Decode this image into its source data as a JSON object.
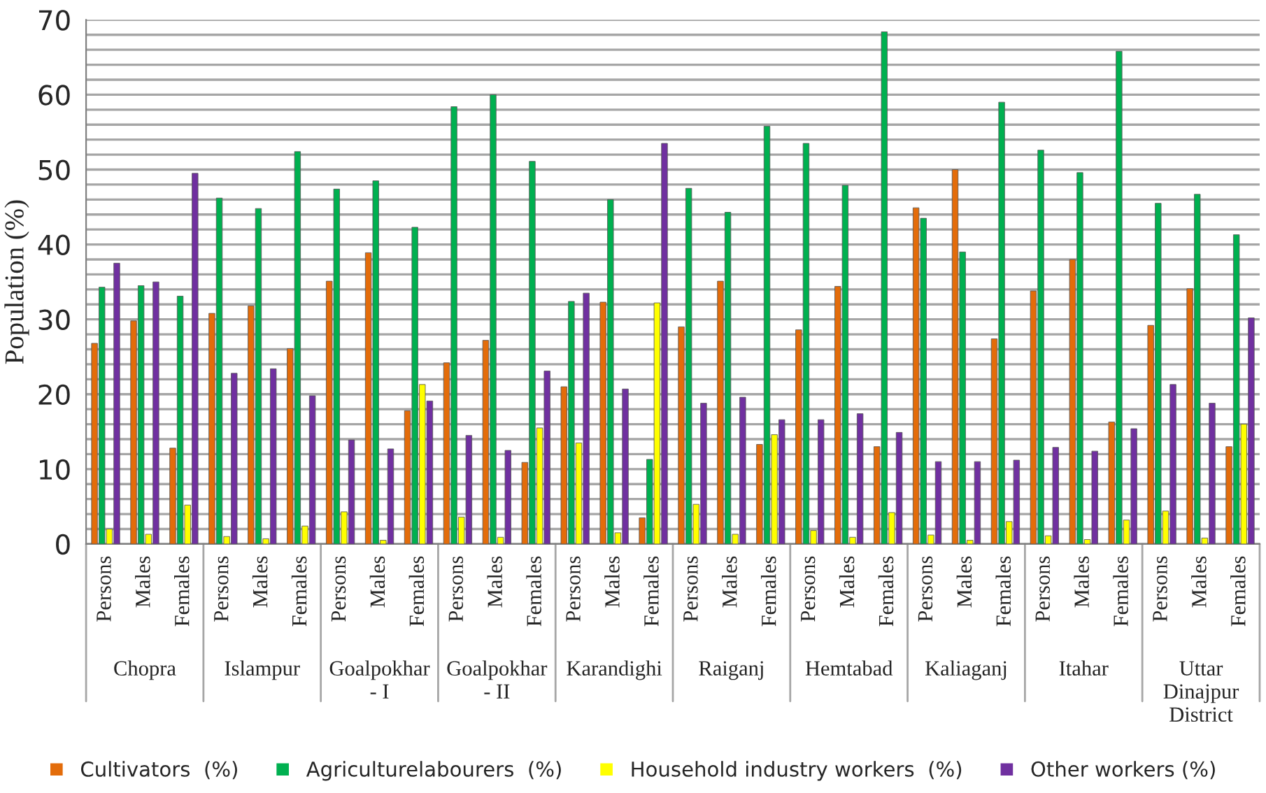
{
  "chart_data": {
    "type": "bar",
    "ylabel": "Population (%)",
    "categories": [
      "Persons",
      "Males",
      "Females",
      "Persons",
      "Males",
      "Females",
      "Persons",
      "Males",
      "Females",
      "Persons",
      "Males",
      "Females",
      "Persons",
      "Males",
      "Females",
      "Persons",
      "Males",
      "Females",
      "Persons",
      "Males",
      "Females",
      "Persons",
      "Males",
      "Females",
      "Persons",
      "Males",
      "Females",
      "Persons",
      "Males",
      "Females"
    ],
    "annotations": [
      "Chopra",
      "Islampur",
      "Goalpokhar\n- I",
      "Goalpokhar\n- II",
      "Karandighi",
      "Raiganj",
      "Hemtabad",
      "Kaliaganj",
      "Itahar",
      "Uttar\nDinajpur\nDistrict"
    ],
    "series": [
      {
        "name": "Cultivators  (%)",
        "color": "#e36c0a",
        "values": [
          26.8,
          29.8,
          12.8,
          30.8,
          31.8,
          26.1,
          35.1,
          38.9,
          17.8,
          24.2,
          27.2,
          10.9,
          21,
          32.3,
          3.5,
          29,
          35.1,
          13.3,
          28.6,
          34.4,
          13,
          44.9,
          50,
          27.4,
          33.8,
          38,
          16.3,
          29.2,
          34.1,
          13
        ]
      },
      {
        "name": "Agriculturelabourers  (%)",
        "color": "#00b050",
        "values": [
          34.3,
          34.5,
          33.1,
          46.2,
          44.8,
          52.4,
          47.4,
          48.5,
          42.3,
          58.4,
          60,
          51.1,
          32.4,
          46,
          11.3,
          47.5,
          44.3,
          55.8,
          53.5,
          47.9,
          68.4,
          43.5,
          39,
          59,
          52.6,
          49.6,
          65.8,
          45.5,
          46.7,
          41.3
        ]
      },
      {
        "name": "Household industry workers  (%)",
        "color": "#ffff00",
        "values": [
          2,
          1.3,
          5.2,
          1,
          0.7,
          2.4,
          4.3,
          0.5,
          21.3,
          3.6,
          0.9,
          15.5,
          13.5,
          1.5,
          32.2,
          5.3,
          1.3,
          14.6,
          1.8,
          0.9,
          4.2,
          1.2,
          0.5,
          3,
          1.1,
          0.6,
          3.2,
          4.4,
          0.8,
          16
        ]
      },
      {
        "name": "Other workers (%)",
        "color": "#7030a0",
        "values": [
          37.5,
          35,
          49.5,
          22.8,
          23.4,
          19.8,
          13.9,
          12.7,
          19.1,
          14.5,
          12.5,
          23.1,
          33.5,
          20.7,
          53.5,
          18.8,
          19.6,
          16.6,
          16.6,
          17.4,
          14.9,
          11,
          11,
          11.2,
          12.9,
          12.4,
          15.4,
          21.3,
          18.8,
          30.2
        ]
      }
    ],
    "ylim": [
      0,
      70
    ],
    "yticks": [
      0,
      {
        "value": 2,
        "label": null
      },
      {
        "value": 4,
        "label": null
      },
      {
        "value": 6,
        "label": null
      },
      {
        "value": 8,
        "label": null
      },
      10,
      {
        "value": 12,
        "label": null
      },
      {
        "value": 14,
        "label": null
      },
      {
        "value": 16,
        "label": null
      },
      {
        "value": 18,
        "label": null
      },
      20,
      {
        "value": 22,
        "label": null
      },
      {
        "value": 24,
        "label": null
      },
      {
        "value": 26,
        "label": null
      },
      {
        "value": 28,
        "label": null
      },
      30,
      {
        "value": 32,
        "label": null
      },
      {
        "value": 34,
        "label": null
      },
      {
        "value": 36,
        "label": null
      },
      {
        "value": 38,
        "label": null
      },
      40,
      {
        "value": 42,
        "label": null
      },
      {
        "value": 44,
        "label": null
      },
      {
        "value": 46,
        "label": null
      },
      {
        "value": 48,
        "label": null
      },
      50,
      {
        "value": 52,
        "label": null
      },
      {
        "value": 54,
        "label": null
      },
      {
        "value": 56,
        "label": null
      },
      {
        "value": 58,
        "label": null
      },
      60,
      {
        "value": 62,
        "label": null
      },
      {
        "value": 64,
        "label": null
      },
      {
        "value": 66,
        "label": null
      },
      {
        "value": 68,
        "label": null
      },
      70
    ],
    "grid": "y",
    "legend": "bottom"
  }
}
